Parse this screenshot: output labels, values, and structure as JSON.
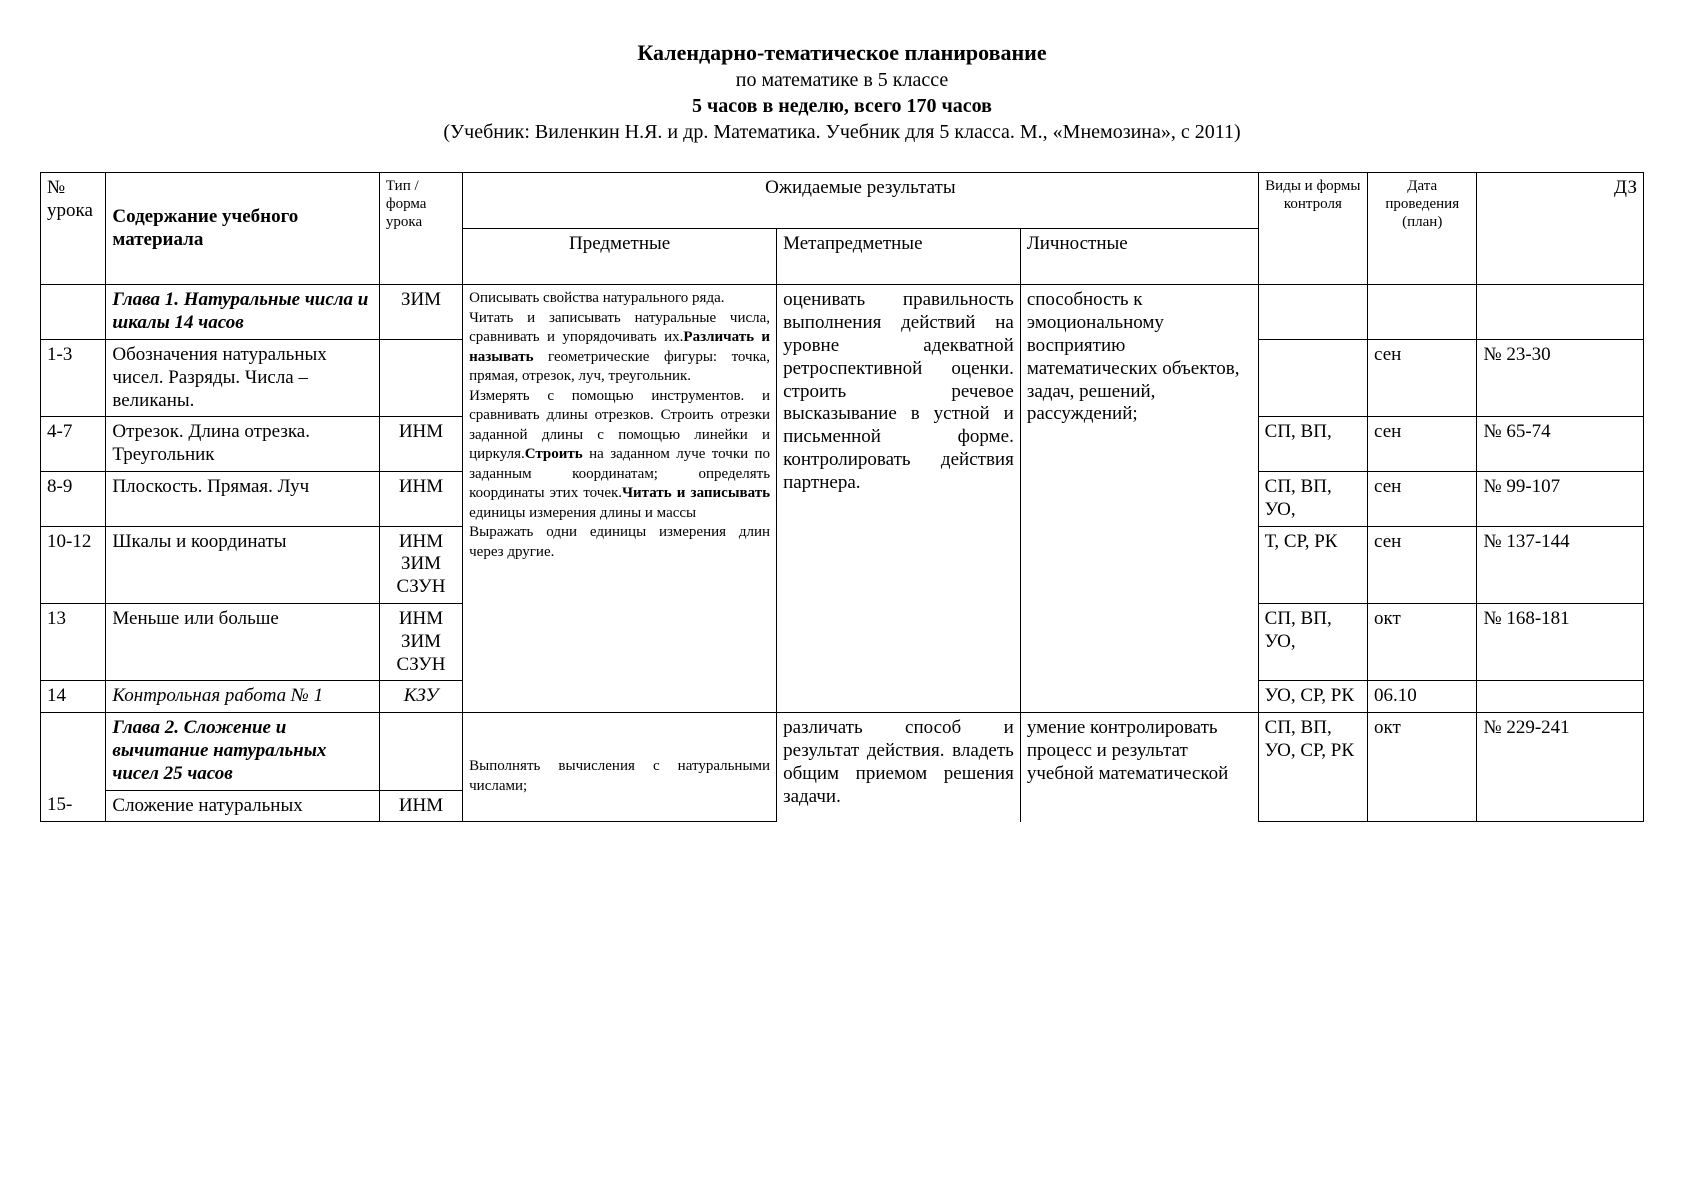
{
  "header": {
    "title": "Календарно-тематическое планирование",
    "subtitle1": "по математике в 5 классе",
    "subtitle2": "5 часов в неделю,  всего 170 часов",
    "subtitle3": "(Учебник: Виленкин Н.Я. и др.  Математика.   Учебник для  5  класса. М., «Мнемозина»,  с  2011)"
  },
  "columns": {
    "num": "№ урока",
    "content": "Содержание учебного материала",
    "type": "Тип / форма урока",
    "results": "Ожидаемые результаты",
    "results_pred": "Предметные",
    "results_meta": "Метапредметные",
    "results_pers": "Личностные",
    "control": "Виды и формы контроля",
    "date": "Дата проведения (план)",
    "hw": "ДЗ"
  },
  "chapter1": {
    "title": "Глава 1. Натуральные числа и шкалы 14 часов",
    "type": "ЗИМ",
    "predmet_plain1": "Описывать свойства натурального ряда.\nЧитать и записывать натуральные числа, сравнивать и упорядочивать их.",
    "predmet_bold1": "Различать и называть",
    "predmet_plain2": " геометрические фигуры: точка, прямая, отрезок, луч, треугольник.\nИзмерять с помощью инструментов. и сравнивать длины отрезков. Строить отрезки заданной длины с помощью линейки и циркуля.",
    "predmet_bold2": "Строить",
    "predmet_plain3": " на заданном луче точки по заданным координатам; определять координаты этих точек.",
    "predmet_bold3": "Читать и записывать",
    "predmet_plain4": " единицы измерения длины и массы\nВыражать одни единицы измерения длин через другие.",
    "meta": "оценивать правильность выполнения действий на уровне адекватной ретроспективной оценки.\nстроить речевое высказывание в устной и письменной форме.\nконтролировать действия партнера.",
    "personal": "способность к эмоциональному восприятию математических объектов, задач, решений, рассуждений;"
  },
  "rows": [
    {
      "num": "1-3",
      "content": "Обозначения натуральных чисел. Разряды. Числа – великаны.",
      "type": "",
      "control": "",
      "date": "сен",
      "hw": "№ 23-30"
    },
    {
      "num": "4-7",
      "content": "Отрезок. Длина отрезка. Треугольник",
      "type": "ИНМ",
      "control": "СП, ВП,",
      "date": "сен",
      "hw": "№ 65-74"
    },
    {
      "num": "8-9",
      "content": "Плоскость. Прямая. Луч",
      "type": "ИНМ",
      "control": "СП, ВП, УО,",
      "date": "сен",
      "hw": "№ 99-107"
    },
    {
      "num": "10-12",
      "content": "Шкалы и координаты",
      "type": "ИНМ ЗИМ СЗУН",
      "control": "Т, СР, РК",
      "date": "сен",
      "hw": "№ 137-144"
    },
    {
      "num": "13",
      "content": "Меньше или больше",
      "type": "ИНМ ЗИМ СЗУН",
      "control": "СП, ВП, УО,",
      "date": "окт",
      "hw": "№ 168-181"
    },
    {
      "num": "14",
      "content": "Контрольная работа № 1",
      "type": "КЗУ",
      "control": "УО, СР, РК",
      "date": "06.10",
      "hw": ""
    }
  ],
  "chapter2": {
    "title": "Глава 2. Сложение и вычитание натуральных чисел 25 часов",
    "predmet": "Выполнять вычисления с натуральными числами;",
    "meta": "различать способ и результат действия.\nвладеть общим приемом решения задачи.",
    "personal": "умение контролировать процесс и результат учебной математической",
    "control": "СП, ВП, УО, СР, РК",
    "date": "окт",
    "hw": "№ 229-241"
  },
  "row15": {
    "num": "15-",
    "content": "Сложение натуральных",
    "type": "ИНМ"
  }
}
